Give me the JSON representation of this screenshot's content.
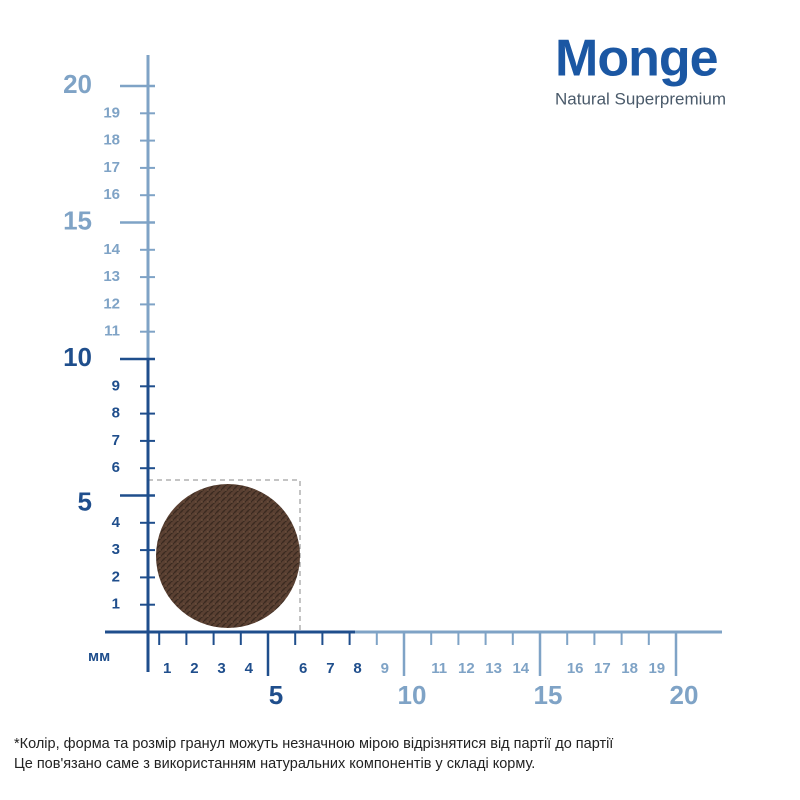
{
  "logo": {
    "brand": "Monge",
    "tagline": "Natural Superpremium"
  },
  "unit": "мм",
  "y_labels": [
    1,
    2,
    3,
    4,
    6,
    7,
    8,
    9,
    11,
    12,
    13,
    14,
    16,
    17,
    18,
    19
  ],
  "y_major_labels": [
    5,
    10,
    15,
    20
  ],
  "x_labels": [
    1,
    2,
    3,
    4,
    6,
    7,
    8,
    9,
    11,
    12,
    13,
    14,
    16,
    17,
    18,
    19
  ],
  "x_major_labels": [
    5,
    10,
    15,
    20
  ],
  "note": [
    "*Колір, форма та розмір гранул можуть незначною мірою відрізнятися від партії до партії",
    "Це пов'язано саме з використанням натуральних компонентів у складі корму."
  ]
}
